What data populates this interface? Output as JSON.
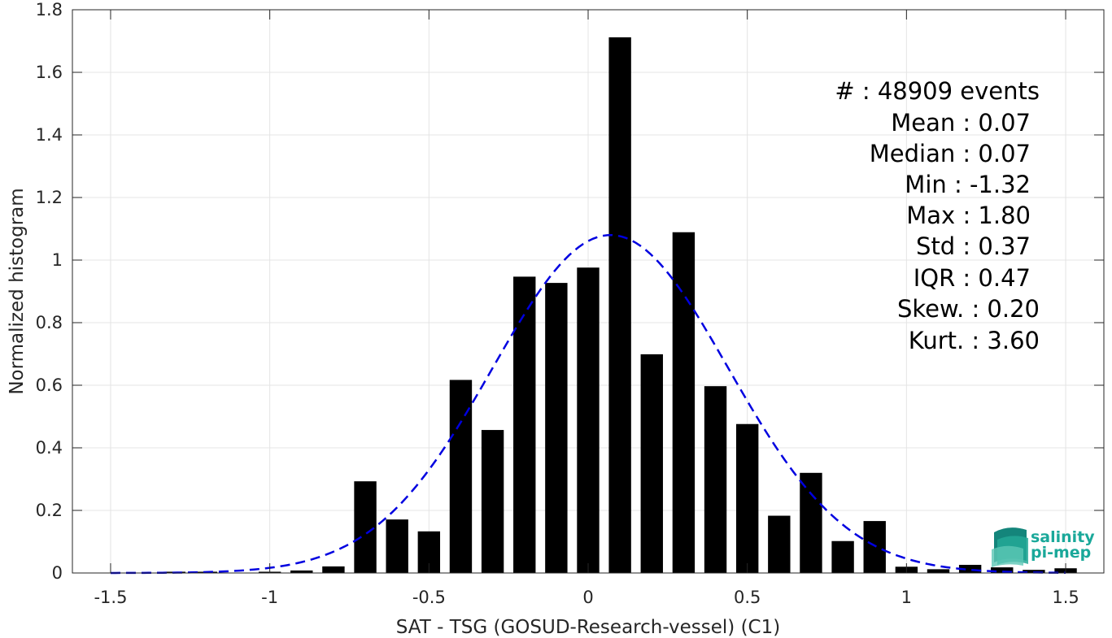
{
  "chart_data": {
    "type": "bar",
    "xlabel": "SAT - TSG (GOSUD-Research-vessel) (C1)",
    "ylabel": "Normalized histogram",
    "xlim": [
      -1.62,
      1.62
    ],
    "ylim": [
      0,
      1.8
    ],
    "xticks": [
      -1.5,
      -1,
      -0.5,
      0,
      0.5,
      1,
      1.5
    ],
    "xtick_labels": [
      "-1.5",
      "-1",
      "-0.5",
      "0",
      "0.5",
      "1",
      "1.5"
    ],
    "yticks": [
      0,
      0.2,
      0.4,
      0.6,
      0.8,
      1,
      1.2,
      1.4,
      1.6,
      1.8
    ],
    "ytick_labels": [
      "0",
      "0.2",
      "0.4",
      "0.6",
      "0.8",
      "1",
      "1.2",
      "1.4",
      "1.6",
      "1.8"
    ],
    "grid": true,
    "bar_color": "#000000",
    "bar_width": 0.07,
    "bins": {
      "x": [
        -1.3,
        -1.2,
        -1.1,
        -1.0,
        -0.9,
        -0.8,
        -0.7,
        -0.6,
        -0.5,
        -0.4,
        -0.3,
        -0.2,
        -0.1,
        0.0,
        0.1,
        0.2,
        0.3,
        0.4,
        0.5,
        0.6,
        0.7,
        0.8,
        0.9,
        1.0,
        1.1,
        1.2,
        1.3,
        1.4,
        1.5
      ],
      "values": [
        0.004,
        0.004,
        0.0,
        0.004,
        0.008,
        0.021,
        0.293,
        0.171,
        0.133,
        0.617,
        0.457,
        0.947,
        0.927,
        0.976,
        1.712,
        0.699,
        1.089,
        0.597,
        0.476,
        0.183,
        0.32,
        0.102,
        0.166,
        0.02,
        0.012,
        0.026,
        0.018,
        0.01,
        0.015
      ]
    },
    "fit": {
      "type": "gaussian",
      "mean": 0.07,
      "std": 0.37,
      "peak": 1.08,
      "x_range": [
        -1.5,
        1.5
      ],
      "color": "#0000e0",
      "style": "dashed"
    },
    "stats": [
      "#  : 48909 events",
      "Mean : 0.07",
      "Median : 0.07",
      "Min : -1.32",
      "Max : 1.80",
      "Std : 0.37",
      "IQR : 0.47",
      "Skew. : 0.20",
      "Kurt. : 3.60"
    ]
  },
  "logo": {
    "line1": "salinity",
    "line2": "pi-mep",
    "color": "#1aa89a"
  }
}
